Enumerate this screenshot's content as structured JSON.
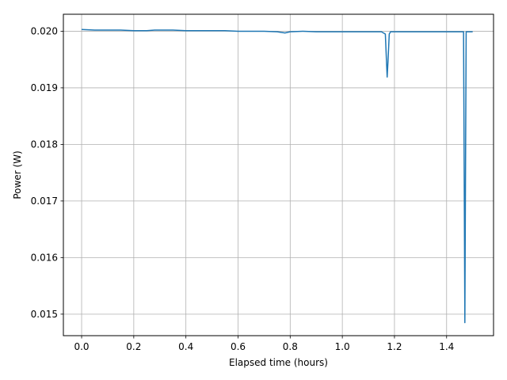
{
  "chart_data": {
    "type": "line",
    "title": "",
    "xlabel": "Elapsed time (hours)",
    "ylabel": "Power (W)",
    "xlim": [
      -0.07,
      1.58
    ],
    "ylim": [
      0.01462,
      0.0203
    ],
    "xticks": [
      0.0,
      0.2,
      0.4,
      0.6,
      0.8,
      1.0,
      1.2,
      1.4
    ],
    "xtick_labels": [
      "0.0",
      "0.2",
      "0.4",
      "0.6",
      "0.8",
      "1.0",
      "1.2",
      "1.4"
    ],
    "yticks": [
      0.015,
      0.016,
      0.017,
      0.018,
      0.019,
      0.02
    ],
    "ytick_labels": [
      "0.015",
      "0.016",
      "0.017",
      "0.018",
      "0.019",
      "0.020"
    ],
    "grid": true,
    "legend": "none",
    "series": [
      {
        "color": "#1f77b4",
        "x": [
          0.0,
          0.05,
          0.1,
          0.15,
          0.2,
          0.25,
          0.28,
          0.3,
          0.35,
          0.4,
          0.45,
          0.5,
          0.55,
          0.6,
          0.65,
          0.7,
          0.75,
          0.78,
          0.8,
          0.85,
          0.9,
          0.95,
          1.0,
          1.05,
          1.1,
          1.15,
          1.165,
          1.17,
          1.172,
          1.175,
          1.18,
          1.185,
          1.2,
          1.25,
          1.3,
          1.35,
          1.4,
          1.45,
          1.465,
          1.468,
          1.47,
          1.472,
          1.475,
          1.48,
          1.5
        ],
        "y": [
          0.02003,
          0.02002,
          0.02002,
          0.02002,
          0.02001,
          0.02001,
          0.02002,
          0.02002,
          0.02002,
          0.02001,
          0.02001,
          0.02001,
          0.02001,
          0.02,
          0.02,
          0.02,
          0.01999,
          0.01997,
          0.01999,
          0.02,
          0.01999,
          0.01999,
          0.01999,
          0.01999,
          0.01999,
          0.01999,
          0.01995,
          0.0194,
          0.01919,
          0.01945,
          0.01995,
          0.01999,
          0.01999,
          0.01999,
          0.01999,
          0.01999,
          0.01999,
          0.01999,
          0.01999,
          0.017,
          0.01485,
          0.017,
          0.01999,
          0.01999,
          0.01999
        ]
      }
    ]
  }
}
